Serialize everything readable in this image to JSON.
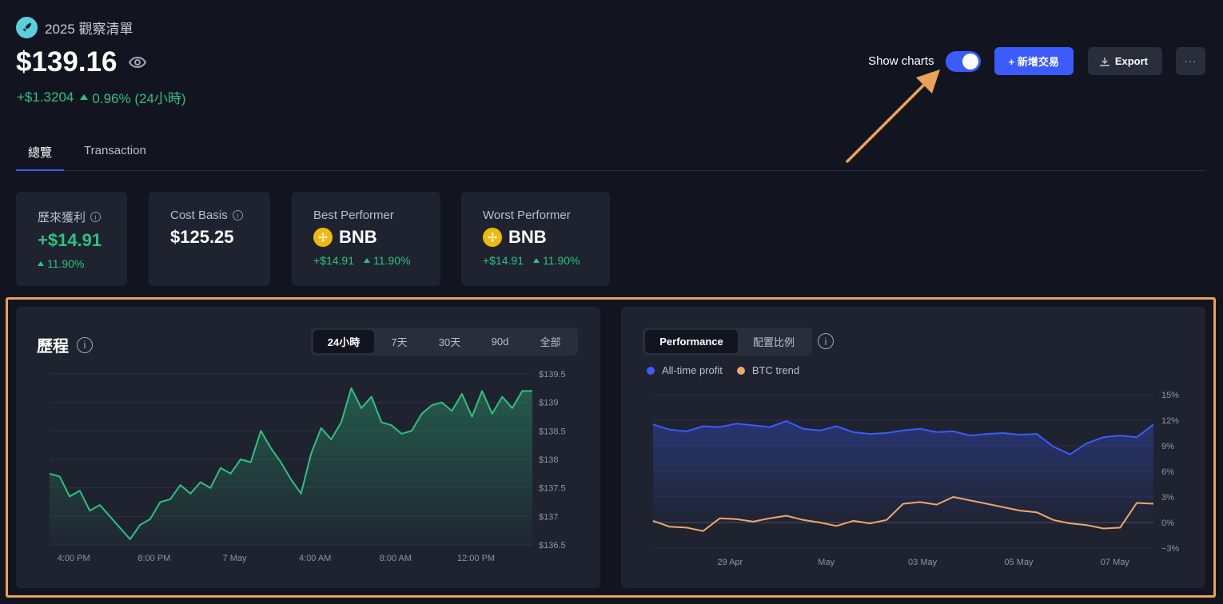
{
  "header": {
    "title": "2025 觀察清單",
    "balance": "$139.16",
    "change_abs": "+$1.3204",
    "change_pct": "0.96% (24小時)"
  },
  "controls": {
    "show_charts_label": "Show charts",
    "show_charts_on": true,
    "add_button": "+ 新增交易",
    "export_button": "Export",
    "more_button": "···"
  },
  "tabs": [
    "總覽",
    "Transaction"
  ],
  "stats": [
    {
      "label": "歷來獲利",
      "value": "+$14.91",
      "sub": "11.90%"
    },
    {
      "label": "Cost Basis",
      "value": "$125.25"
    },
    {
      "label": "Best Performer",
      "value": "BNB",
      "sub_abs": "+$14.91",
      "sub_pct": "11.90%"
    },
    {
      "label": "Worst Performer",
      "value": "BNB",
      "sub_abs": "+$14.91",
      "sub_pct": "11.90%"
    }
  ],
  "history_panel": {
    "title": "歷程",
    "ranges": [
      "24小時",
      "7天",
      "30天",
      "90d",
      "全部"
    ],
    "active_range": "24小時"
  },
  "perf_panel": {
    "segments": [
      "Performance",
      "配置比例"
    ],
    "active_segment": "Performance",
    "legend": [
      "All-time profit",
      "BTC trend"
    ]
  },
  "colors": {
    "background": "#12151f",
    "card": "#1f2330",
    "accent": "#3b5bfd",
    "positive": "#2ec27e",
    "btc": "#f0a868",
    "highlight": "#e8a25a"
  },
  "chart_data": [
    {
      "type": "area",
      "title": "",
      "ylim": [
        136.5,
        139.5
      ],
      "y_ticks": [
        "$139.5",
        "$139",
        "$138.5",
        "$138",
        "$137.5",
        "$137",
        "$136.5"
      ],
      "x_ticks": [
        "4:00 PM",
        "8:00 PM",
        "7 May",
        "4:00 AM",
        "8:00 AM",
        "12:00 PM"
      ],
      "x": [
        0,
        0.5,
        1,
        1.5,
        2,
        2.5,
        3,
        3.5,
        4,
        4.5,
        5,
        5.5,
        6,
        6.5,
        7,
        7.5,
        8,
        8.5,
        9,
        9.5,
        10,
        10.5,
        11,
        11.5,
        12,
        12.5,
        13,
        13.5,
        14,
        14.5,
        15,
        15.5,
        16,
        16.5,
        17,
        17.5,
        18,
        18.5,
        19,
        19.5,
        20,
        20.5,
        21,
        21.5,
        22,
        22.5,
        23,
        23.5,
        24
      ],
      "series": [
        {
          "values": [
            137.75,
            137.7,
            137.35,
            137.45,
            137.1,
            137.2,
            137.0,
            136.8,
            136.6,
            136.85,
            136.95,
            137.25,
            137.3,
            137.55,
            137.4,
            137.6,
            137.5,
            137.85,
            137.75,
            138.0,
            137.95,
            138.5,
            138.2,
            137.95,
            137.65,
            137.4,
            138.1,
            138.55,
            138.35,
            138.65,
            139.25,
            138.9,
            139.1,
            138.65,
            138.6,
            138.45,
            138.5,
            138.8,
            138.95,
            139.0,
            138.85,
            139.15,
            138.75,
            139.2,
            138.8,
            139.1,
            138.9,
            139.2,
            139.2
          ]
        }
      ]
    },
    {
      "type": "line",
      "title": "",
      "ylim": [
        -3,
        15
      ],
      "y_ticks": [
        "15%",
        "12%",
        "9%",
        "6%",
        "3%",
        "0%",
        "−3%"
      ],
      "x_ticks": [
        "29 Apr",
        "May",
        "03 May",
        "05 May",
        "07 May"
      ],
      "x": [
        0,
        1,
        2,
        3,
        4,
        5,
        6,
        7,
        8,
        9,
        10,
        11,
        12,
        13,
        14,
        15,
        16,
        17,
        18,
        19,
        20,
        21,
        22,
        23,
        24,
        25,
        26,
        27,
        28,
        29,
        30
      ],
      "series": [
        {
          "name": "All-time profit",
          "values": [
            11.5,
            10.9,
            10.7,
            11.3,
            11.2,
            11.6,
            11.4,
            11.2,
            11.9,
            11.0,
            10.8,
            11.3,
            10.6,
            10.4,
            10.5,
            10.8,
            11.0,
            10.6,
            10.7,
            10.2,
            10.4,
            10.5,
            10.3,
            10.4,
            8.9,
            8.0,
            9.3,
            10.0,
            10.2,
            10.0,
            11.5
          ]
        },
        {
          "name": "BTC trend",
          "values": [
            0.2,
            -0.5,
            -0.6,
            -1.0,
            0.5,
            0.4,
            0.1,
            0.5,
            0.8,
            0.3,
            0.0,
            -0.4,
            0.2,
            -0.1,
            0.3,
            2.2,
            2.4,
            2.1,
            3.0,
            2.6,
            2.2,
            1.8,
            1.4,
            1.2,
            0.3,
            -0.1,
            -0.3,
            -0.7,
            -0.6,
            2.3,
            2.2
          ]
        }
      ]
    }
  ]
}
